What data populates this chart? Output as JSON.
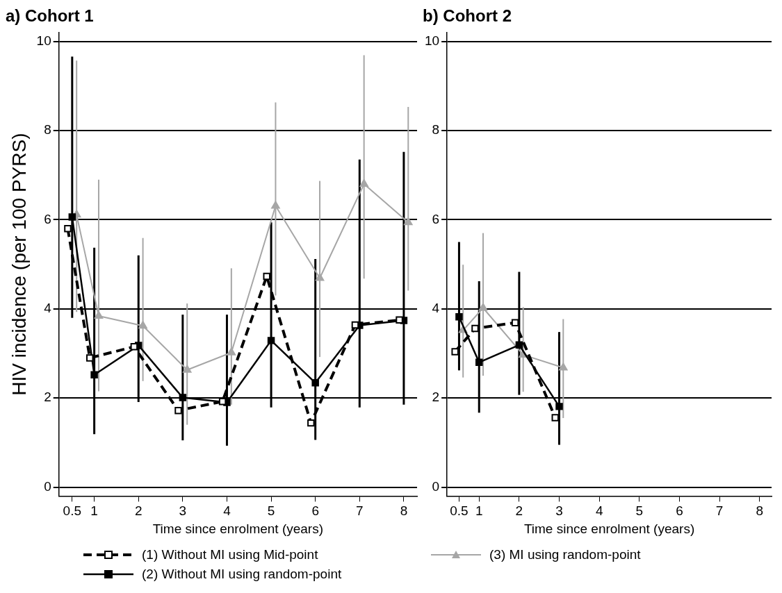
{
  "chart_data": [
    {
      "type": "line",
      "title": "a) Cohort 1",
      "xlabel": "Time since enrolment (years)",
      "ylabel": "HIV incidence (per 100 PYRS)",
      "xlim": [
        0.2,
        8.3
      ],
      "xticks": [
        0.5,
        1,
        2,
        3,
        4,
        5,
        6,
        7,
        8
      ],
      "ylim": [
        -0.2,
        10.2
      ],
      "yticks": [
        0,
        2,
        4,
        6,
        8,
        10
      ],
      "grid": "y",
      "legend": "bottom",
      "series": [
        {
          "name": "(1) Without MI using Mid-point",
          "color": "#000000",
          "marker": "square",
          "line_style": "dashed",
          "x": [
            0.4,
            0.9,
            1.9,
            2.9,
            3.9,
            4.9,
            5.9,
            6.9,
            7.9
          ],
          "values": [
            5.8,
            2.9,
            3.15,
            1.72,
            1.92,
            4.73,
            1.44,
            3.64,
            3.75
          ]
        },
        {
          "name": "(2) Without MI using random-point",
          "color": "#000000",
          "marker": "square",
          "line_style": "solid",
          "x": [
            0.5,
            1,
            2,
            3,
            4,
            5,
            6,
            7,
            8
          ],
          "values": [
            6.06,
            2.52,
            3.18,
            2.01,
            1.9,
            3.29,
            2.34,
            3.63,
            3.74
          ],
          "errors": [
            [
              3.8,
              9.66
            ],
            [
              1.19,
              5.37
            ],
            [
              1.91,
              5.2
            ],
            [
              1.05,
              3.87
            ],
            [
              0.93,
              3.87
            ],
            [
              1.79,
              5.94
            ],
            [
              1.06,
              5.12
            ],
            [
              1.79,
              7.35
            ],
            [
              1.85,
              7.52
            ]
          ]
        },
        {
          "name": "(3) MI using random-point",
          "color": "#a6a6a6",
          "marker": "triangle",
          "line_style": "solid",
          "x": [
            0.6,
            1.1,
            2.1,
            3.1,
            4.1,
            5.1,
            6.1,
            7.1,
            8.1
          ],
          "values": [
            6.11,
            3.84,
            3.62,
            2.63,
            3.02,
            6.31,
            4.69,
            6.8,
            5.94
          ],
          "errors": [
            [
              3.93,
              9.57
            ],
            [
              2.15,
              6.9
            ],
            [
              2.38,
              5.59
            ],
            [
              1.4,
              4.12
            ],
            [
              1.85,
              4.91
            ],
            [
              4.3,
              8.63
            ],
            [
              2.92,
              6.87
            ],
            [
              4.68,
              9.69
            ],
            [
              4.41,
              8.53
            ]
          ]
        }
      ]
    },
    {
      "type": "line",
      "title": "b) Cohort 2",
      "xlabel": "Time since enrolment (years)",
      "xlim": [
        0.2,
        8.3
      ],
      "xticks": [
        0.5,
        1,
        2,
        3,
        4,
        5,
        6,
        7,
        8
      ],
      "ylim": [
        -0.2,
        10.2
      ],
      "yticks": [
        0,
        2,
        4,
        6,
        8,
        10
      ],
      "grid": "y",
      "series": [
        {
          "color": "#000000",
          "marker": "square",
          "line_style": "dashed",
          "x": [
            0.4,
            0.9,
            1.9,
            2.9
          ],
          "values": [
            3.04,
            3.56,
            3.69,
            1.56
          ]
        },
        {
          "color": "#000000",
          "marker": "square",
          "line_style": "solid",
          "x": [
            0.5,
            1,
            2,
            3
          ],
          "values": [
            3.82,
            2.8,
            3.19,
            1.81
          ],
          "errors": [
            [
              2.62,
              5.5
            ],
            [
              1.67,
              4.62
            ],
            [
              2.07,
              4.83
            ],
            [
              0.95,
              3.48
            ]
          ]
        },
        {
          "color": "#a6a6a6",
          "marker": "triangle",
          "line_style": "solid",
          "x": [
            0.6,
            1.1,
            2.1,
            3.1
          ],
          "values": [
            3.52,
            4.02,
            2.97,
            2.68
          ],
          "errors": [
            [
              2.46,
              4.99
            ],
            [
              2.5,
              5.7
            ],
            [
              2.14,
              4.04
            ],
            [
              1.55,
              3.77
            ]
          ]
        }
      ]
    }
  ]
}
